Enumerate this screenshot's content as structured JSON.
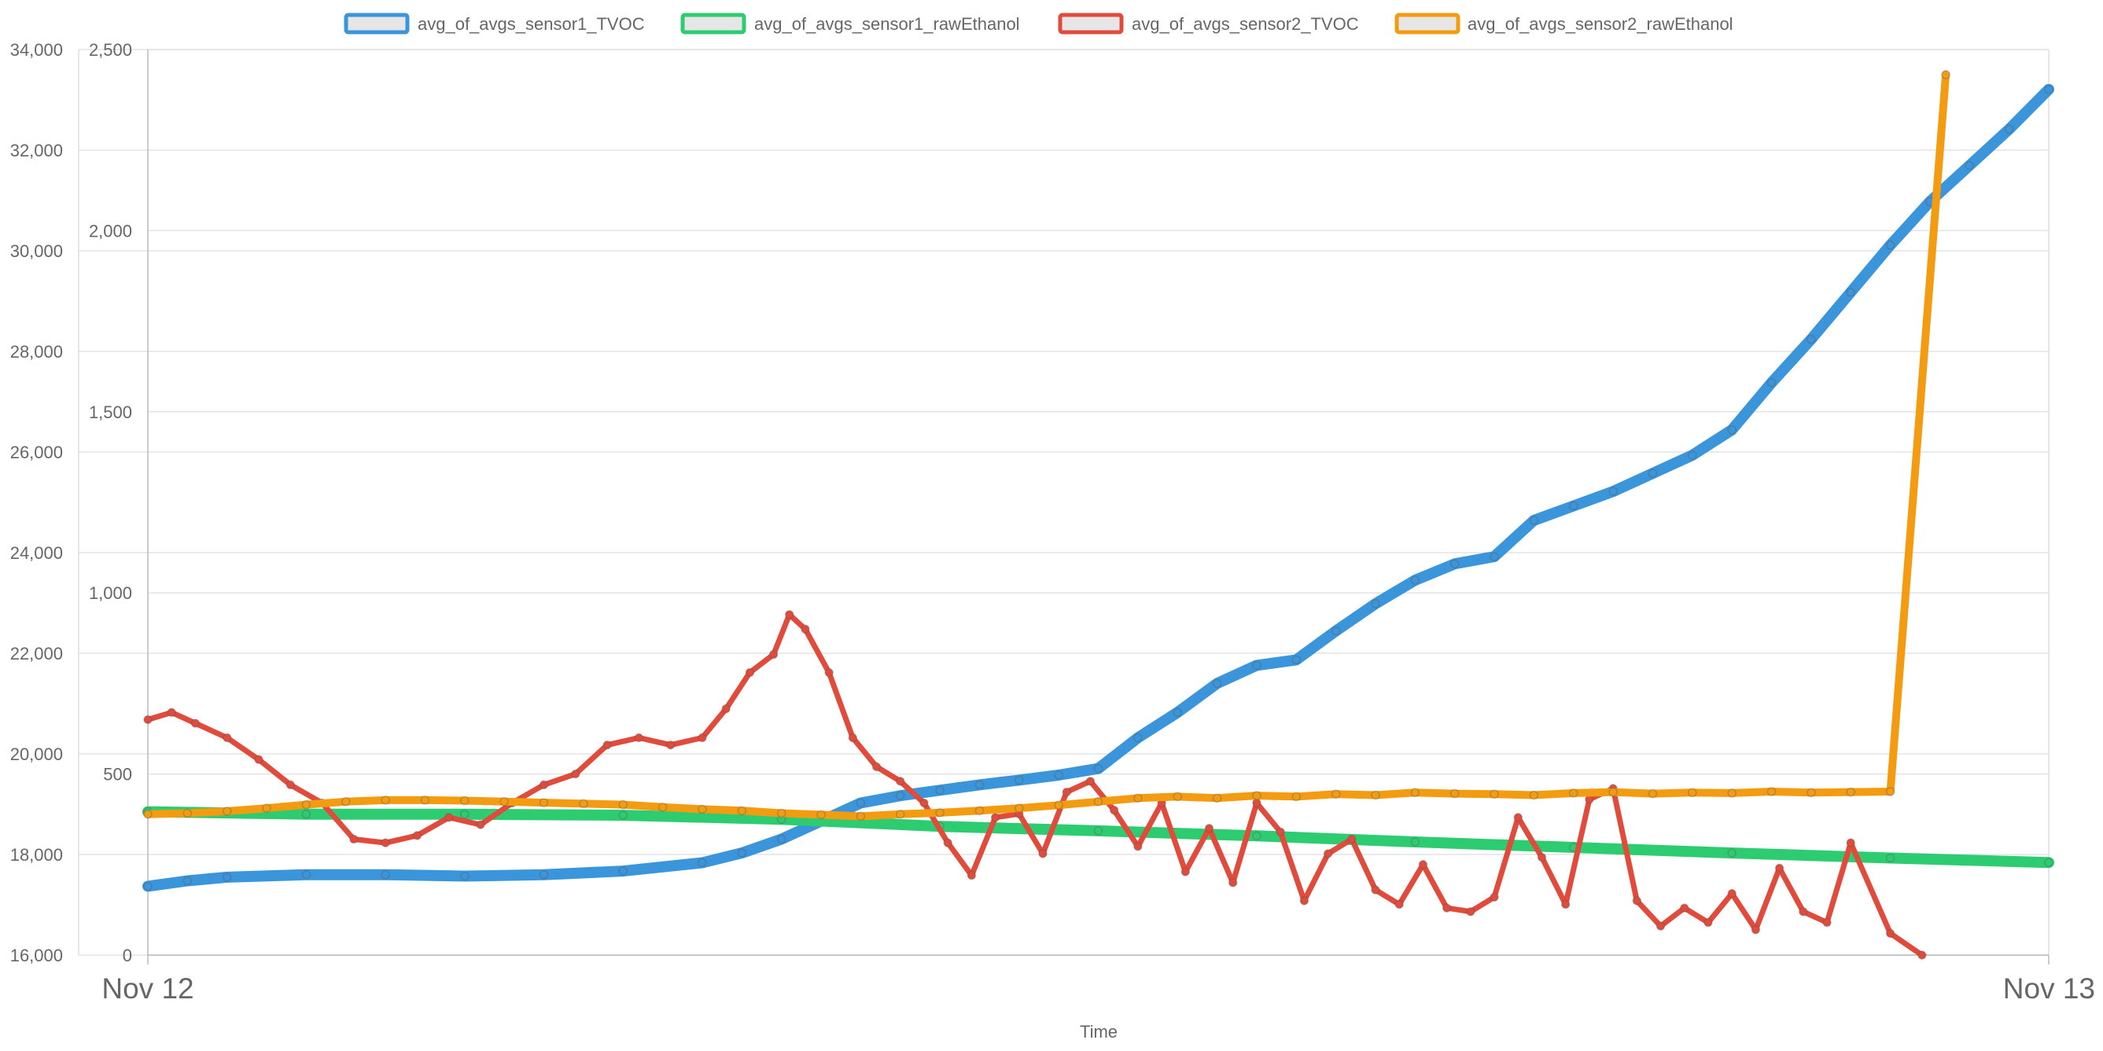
{
  "chart_data": {
    "type": "line",
    "title": "",
    "xlabel": "Time",
    "x_ticks": [
      "Nov 12",
      "Nov 13"
    ],
    "legend_position": "top",
    "grid": true,
    "axes": [
      {
        "id": "left_outer",
        "ylim": [
          16000,
          34000
        ],
        "ticks": [
          "16,000",
          "18,000",
          "20,000",
          "22,000",
          "24,000",
          "26,000",
          "28,000",
          "30,000",
          "32,000",
          "34,000"
        ],
        "tick_values": [
          16000,
          18000,
          20000,
          22000,
          24000,
          26000,
          28000,
          30000,
          32000,
          34000
        ]
      },
      {
        "id": "left_inner",
        "ylim": [
          0,
          2500
        ],
        "ticks": [
          "0",
          "500",
          "1,000",
          "1,500",
          "2,000",
          "2,500"
        ],
        "tick_values": [
          0,
          500,
          1000,
          1500,
          2000,
          2500
        ]
      }
    ],
    "x_range_hours": [
      0,
      24
    ],
    "series": [
      {
        "name": "avg_of_avgs_sensor1_TVOC",
        "color": "#3b95db",
        "axis": "left_inner",
        "x_hours": [
          0,
          0.5,
          1,
          2,
          3,
          4,
          5,
          6,
          7,
          7.5,
          8,
          8.5,
          9,
          9.5,
          10,
          10.5,
          11,
          11.5,
          12,
          12.5,
          13,
          13.5,
          14,
          14.5,
          15,
          15.5,
          16,
          16.5,
          17,
          17.5,
          18,
          18.5,
          19,
          19.5,
          20,
          20.5,
          21,
          21.5,
          22,
          22.5,
          23,
          23.5,
          24
        ],
        "values": [
          190,
          205,
          215,
          222,
          222,
          218,
          222,
          232,
          255,
          282,
          320,
          370,
          420,
          440,
          455,
          470,
          483,
          497,
          515,
          600,
          670,
          750,
          800,
          815,
          895,
          970,
          1035,
          1080,
          1100,
          1200,
          1240,
          1280,
          1330,
          1380,
          1450,
          1580,
          1700,
          1830,
          1960,
          2080,
          2180,
          2280,
          2390
        ]
      },
      {
        "name": "avg_of_avgs_sensor1_rawEthanol",
        "color": "#2ecc71",
        "axis": "left_outer",
        "x_hours": [
          0,
          2,
          4,
          6,
          8,
          10,
          12,
          14,
          16,
          18,
          20,
          22,
          24
        ],
        "values": [
          18850,
          18800,
          18800,
          18780,
          18700,
          18560,
          18470,
          18370,
          18250,
          18140,
          18030,
          17930,
          17840
        ]
      },
      {
        "name": "avg_of_avgs_sensor2_TVOC",
        "color": "#e04b3c",
        "axis": "left_inner",
        "x_hours": [
          0,
          0.3,
          0.6,
          1,
          1.4,
          1.8,
          2.2,
          2.6,
          3,
          3.4,
          3.8,
          4.2,
          4.6,
          5,
          5.4,
          5.8,
          6.2,
          6.6,
          7,
          7.3,
          7.6,
          7.9,
          8.1,
          8.3,
          8.6,
          8.9,
          9.2,
          9.5,
          9.8,
          10.1,
          10.4,
          10.7,
          11,
          11.3,
          11.6,
          11.9,
          12.2,
          12.5,
          12.8,
          13.1,
          13.4,
          13.7,
          14,
          14.3,
          14.6,
          14.9,
          15.2,
          15.5,
          15.8,
          16.1,
          16.4,
          16.7,
          17,
          17.3,
          17.6,
          17.9,
          18.2,
          18.5,
          18.8,
          19.1,
          19.4,
          19.7,
          20,
          20.3,
          20.6,
          20.9,
          21.2,
          21.5,
          22,
          22.4
        ],
        "values": [
          650,
          670,
          640,
          600,
          540,
          470,
          420,
          320,
          310,
          330,
          380,
          360,
          420,
          470,
          500,
          580,
          600,
          580,
          600,
          680,
          780,
          830,
          940,
          900,
          780,
          600,
          520,
          480,
          420,
          310,
          220,
          380,
          390,
          280,
          450,
          480,
          400,
          300,
          420,
          230,
          350,
          200,
          420,
          340,
          150,
          280,
          320,
          180,
          140,
          250,
          130,
          120,
          160,
          380,
          270,
          140,
          430,
          460,
          150,
          80,
          130,
          90,
          170,
          70,
          240,
          120,
          90,
          310,
          60,
          0
        ]
      },
      {
        "name": "avg_of_avgs_sensor2_rawEthanol",
        "color": "#f39c12",
        "axis": "left_outer",
        "x_hours": [
          0,
          0.5,
          1,
          1.5,
          2,
          2.5,
          3,
          3.5,
          4,
          4.5,
          5,
          5.5,
          6,
          6.5,
          7,
          7.5,
          8,
          8.5,
          9,
          9.5,
          10,
          10.5,
          11,
          11.5,
          12,
          12.5,
          13,
          13.5,
          14,
          14.5,
          15,
          15.5,
          16,
          16.5,
          17,
          17.5,
          18,
          18.5,
          19,
          19.5,
          20,
          20.5,
          21,
          21.5,
          22,
          22.7
        ],
        "values": [
          18800,
          18820,
          18860,
          18920,
          18990,
          19050,
          19080,
          19080,
          19070,
          19050,
          19030,
          19010,
          18990,
          18940,
          18900,
          18870,
          18820,
          18790,
          18760,
          18800,
          18830,
          18870,
          18920,
          18980,
          19050,
          19120,
          19150,
          19120,
          19170,
          19150,
          19200,
          19180,
          19230,
          19210,
          19200,
          19180,
          19220,
          19240,
          19210,
          19230,
          19220,
          19250,
          19230,
          19240,
          19250,
          33500
        ]
      }
    ]
  }
}
